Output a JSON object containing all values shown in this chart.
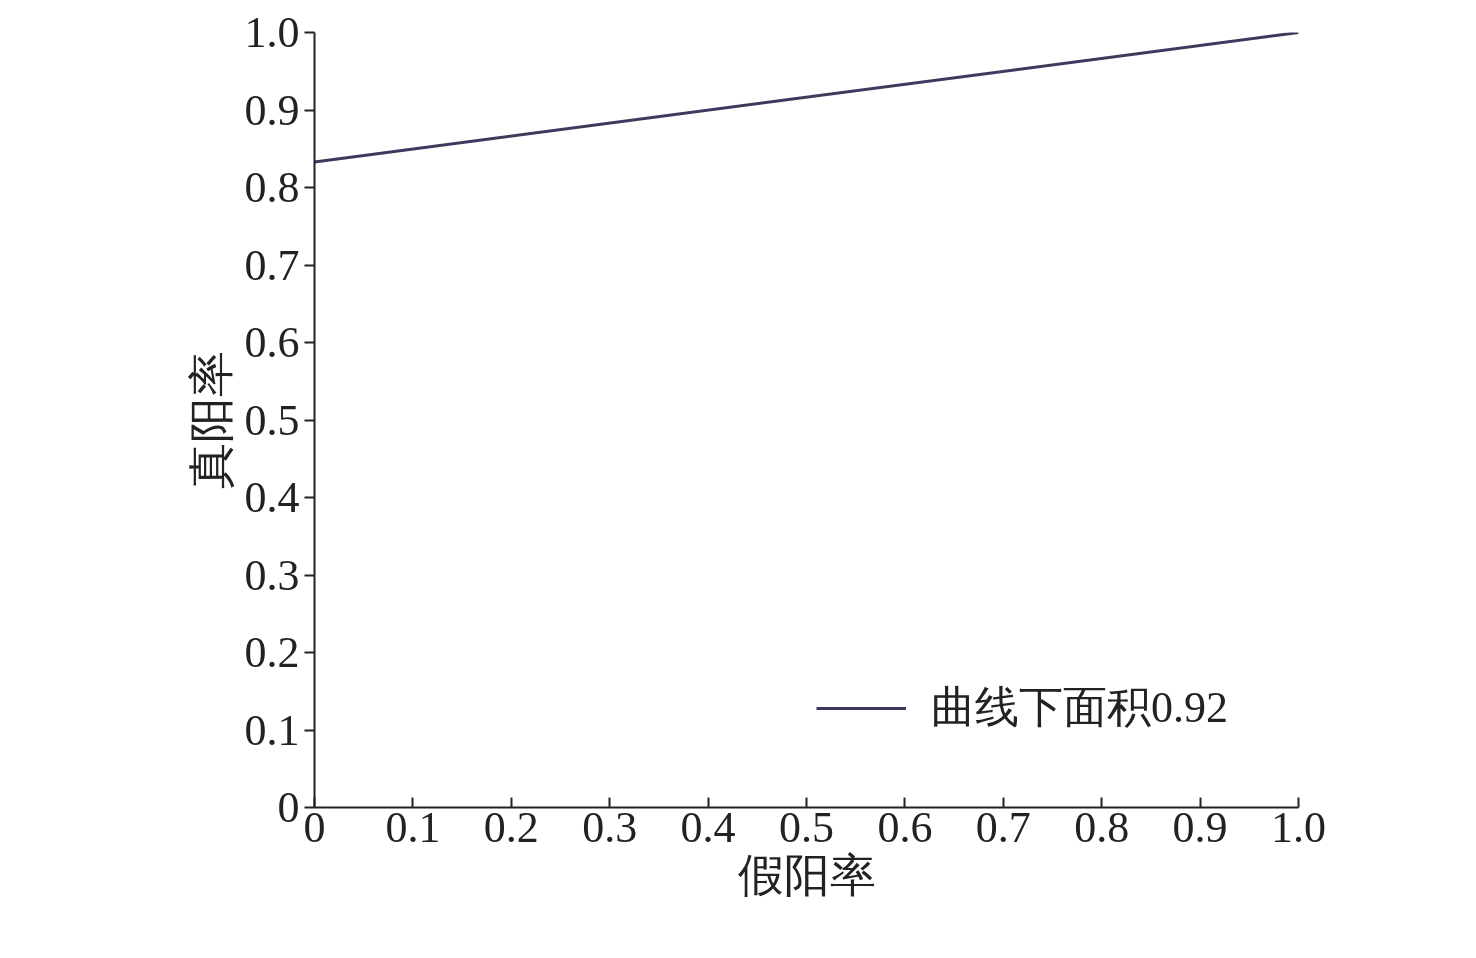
{
  "chart_data": {
    "type": "line",
    "xlabel": "假阳率",
    "ylabel": "真阳率",
    "x": [
      0,
      1
    ],
    "series": [
      {
        "name": "曲线下面积0.92",
        "color": "#3b3b5e",
        "values": [
          0.833,
          1.0
        ]
      }
    ],
    "xlim": [
      0,
      1
    ],
    "ylim": [
      0,
      1
    ],
    "xticks": [
      0,
      0.1,
      0.2,
      0.3,
      0.4,
      0.5,
      0.6,
      0.7,
      0.8,
      0.9,
      {
        "value": 1,
        "label": "1.0"
      }
    ],
    "yticks": [
      0,
      0.1,
      0.2,
      0.3,
      0.4,
      0.5,
      0.6,
      0.7,
      0.8,
      0.9,
      {
        "value": 1,
        "label": "1.0"
      }
    ],
    "grid": false,
    "legend": "bottom right",
    "marker": "none",
    "line_style": "solid"
  }
}
